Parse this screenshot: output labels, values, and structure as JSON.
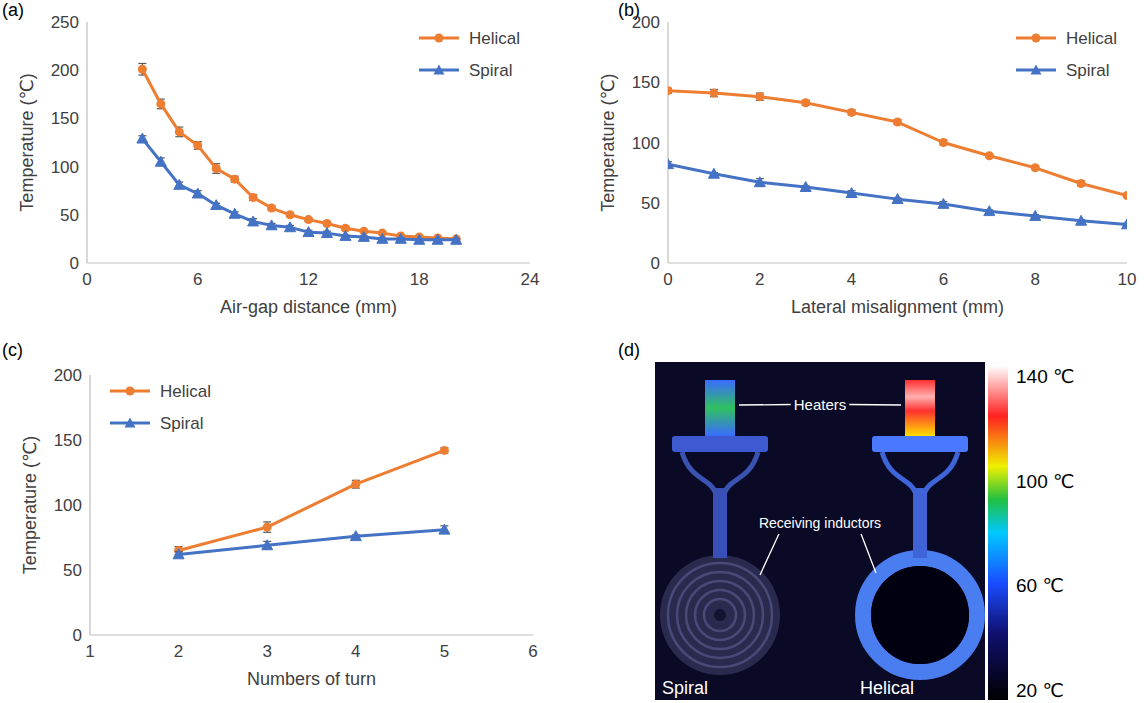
{
  "chart_data": [
    {
      "type": "line",
      "panel_label": "(a)",
      "x_label": "Air-gap distance (mm)",
      "y_label": "Temperature (℃)",
      "x": [
        3,
        4,
        5,
        6,
        7,
        8,
        9,
        10,
        11,
        12,
        13,
        14,
        15,
        16,
        17,
        18,
        19,
        20
      ],
      "series": [
        {
          "name": "Helical",
          "color": "#ed7d31",
          "marker": "circle",
          "values": [
            201,
            165,
            136,
            122,
            98,
            87,
            68,
            57,
            50,
            45,
            41,
            36,
            33,
            31,
            28,
            27,
            26,
            25
          ],
          "errors": [
            6,
            5,
            5,
            4,
            5,
            3,
            3,
            2,
            2,
            2,
            2,
            2,
            1,
            1,
            1,
            1,
            1,
            1
          ]
        },
        {
          "name": "Spiral",
          "color": "#4472c4",
          "marker": "triangle",
          "values": [
            129,
            105,
            81,
            72,
            60,
            51,
            43,
            39,
            37,
            32,
            31,
            28,
            27,
            25,
            25,
            24,
            24,
            24
          ],
          "errors": [
            3,
            4,
            3,
            3,
            2,
            2,
            3,
            2,
            2,
            2,
            2,
            1,
            1,
            1,
            1,
            1,
            1,
            1
          ]
        }
      ],
      "xlim": [
        0,
        24
      ],
      "xticks": [
        0,
        6,
        12,
        18,
        24
      ],
      "ylim": [
        0,
        250
      ],
      "yticks": [
        0,
        50,
        100,
        150,
        200,
        250
      ],
      "grid": false,
      "legend": "top-right"
    },
    {
      "type": "line",
      "panel_label": "(b)",
      "x_label": "Lateral misalignment (mm)",
      "y_label": "Temperature (℃)",
      "x": [
        0,
        1,
        2,
        3,
        4,
        5,
        6,
        7,
        8,
        9,
        10
      ],
      "series": [
        {
          "name": "Helical",
          "color": "#ed7d31",
          "marker": "circle",
          "values": [
            143,
            141,
            138,
            133,
            125,
            117,
            100,
            89,
            79,
            66,
            56
          ],
          "errors": [
            2,
            3,
            3,
            2,
            2,
            2,
            2,
            1,
            1,
            2,
            1
          ]
        },
        {
          "name": "Spiral",
          "color": "#4472c4",
          "marker": "triangle",
          "values": [
            82,
            74,
            67,
            63,
            58,
            53,
            49,
            43,
            39,
            35,
            32
          ],
          "errors": [
            2,
            1,
            3,
            1,
            2,
            1,
            2,
            1,
            1,
            1,
            1
          ]
        }
      ],
      "xlim": [
        0,
        10
      ],
      "xticks": [
        0,
        2,
        4,
        6,
        8,
        10
      ],
      "ylim": [
        0,
        200
      ],
      "yticks": [
        0,
        50,
        100,
        150,
        200
      ],
      "grid": false,
      "legend": "top-right"
    },
    {
      "type": "line",
      "panel_label": "(c)",
      "x_label": "Numbers of turn",
      "y_label": "Temperature (℃)",
      "x": [
        2,
        3,
        4,
        5
      ],
      "series": [
        {
          "name": "Helical",
          "color": "#ed7d31",
          "marker": "circle",
          "values": [
            65,
            83,
            116,
            142
          ],
          "errors": [
            3,
            4,
            3,
            2
          ]
        },
        {
          "name": "Spiral",
          "color": "#4472c4",
          "marker": "triangle",
          "values": [
            62,
            69,
            76,
            81
          ],
          "errors": [
            2,
            3,
            1,
            3
          ]
        }
      ],
      "xlim": [
        1,
        6
      ],
      "xticks": [
        1,
        2,
        3,
        4,
        5,
        6
      ],
      "ylim": [
        0,
        200
      ],
      "yticks": [
        0,
        50,
        100,
        150,
        200
      ],
      "grid": false,
      "legend": "top-left"
    }
  ],
  "thermal_image": {
    "panel_label": "(d)",
    "labels": {
      "heaters": "Heaters",
      "receiving_inductors": "Receiving inductors",
      "spiral": "Spiral",
      "helical": "Helical"
    },
    "colorbar": {
      "range": [
        20,
        140
      ],
      "ticks": [
        {
          "value": 140,
          "label": "140 ℃"
        },
        {
          "value": 100,
          "label": "100 ℃"
        },
        {
          "value": 60,
          "label": "60 ℃"
        },
        {
          "value": 20,
          "label": "20 ℃"
        }
      ]
    }
  }
}
